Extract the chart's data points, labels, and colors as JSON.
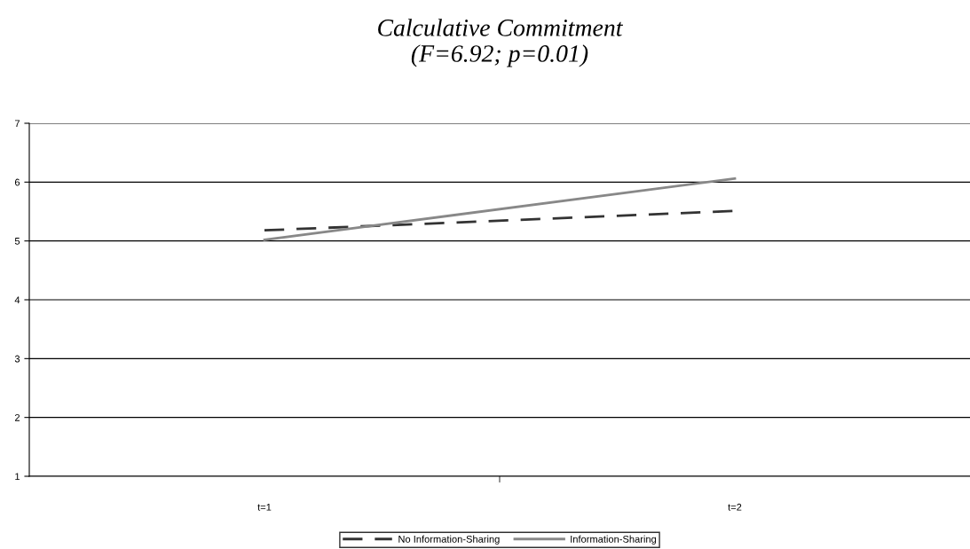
{
  "chart_data": {
    "type": "line",
    "title": "Calculative Commitment\n(F=6.92; p=0.01)",
    "categories": [
      "t=1",
      "t=2"
    ],
    "series": [
      {
        "name": "No Information-Sharing",
        "color": "#333333",
        "line_style": "dashed",
        "values": [
          5.18,
          5.51
        ]
      },
      {
        "name": "Information-Sharing",
        "color": "#888888",
        "line_style": "solid",
        "values": [
          5.02,
          6.06
        ]
      }
    ],
    "ylim": [
      1,
      7
    ],
    "yticks": [
      1,
      2,
      3,
      4,
      5,
      6,
      7
    ],
    "grid": "y",
    "legend": "bottom",
    "marker": "none"
  }
}
